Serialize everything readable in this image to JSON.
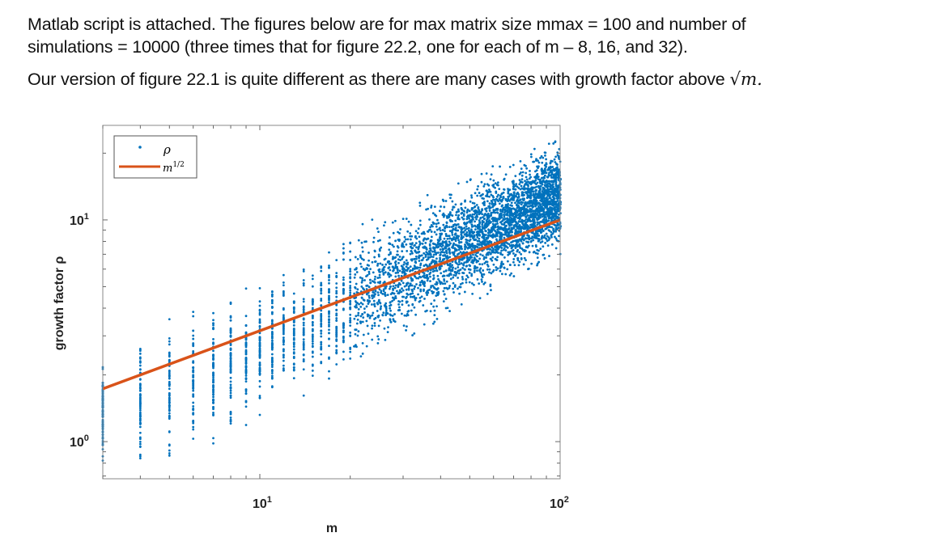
{
  "text": {
    "line1": "Matlab script is attached. The figures below are for max matrix size mmax = 100 and number of",
    "line2": "simulations = 10000 (three times that for figure 22.2, one for each of m – 8, 16, and 32).",
    "line3": "Our version of figure 22.1 is quite different as there are many cases with growth factor above",
    "line3_math": "√m."
  },
  "colors": {
    "scatter": "#0072BD",
    "line": "#D95319",
    "axis": "#7a7a7a"
  },
  "chart_data": {
    "type": "scatter",
    "xscale": "log",
    "yscale": "log",
    "xlabel": "m",
    "ylabel": "growth factor ρ",
    "xlim": [
      3,
      100
    ],
    "ylim": [
      0.68,
      26.7
    ],
    "xticks": [
      {
        "value": 10,
        "label": "10",
        "exp": "1"
      },
      {
        "value": 100,
        "label": "10",
        "exp": "2"
      }
    ],
    "yticks": [
      {
        "value": 1,
        "label": "10",
        "exp": "0"
      },
      {
        "value": 10,
        "label": "10",
        "exp": "1"
      }
    ],
    "legend": {
      "position": "top-left",
      "entries": [
        "ρ",
        "m^1/2"
      ],
      "rho": "ρ",
      "sqrt_base": "m",
      "sqrt_exp": "1/2"
    },
    "series": [
      {
        "name": "ρ",
        "kind": "scatter",
        "m_range": [
          3,
          100
        ],
        "envelope_m": [
          3,
          4,
          5,
          6,
          8,
          10,
          16,
          25,
          40,
          63,
          100
        ],
        "envelope_low": [
          0.7,
          0.72,
          0.78,
          0.85,
          1.0,
          1.3,
          1.7,
          2.4,
          3.5,
          5.0,
          7.0
        ],
        "envelope_high": [
          2.5,
          3.3,
          3.8,
          4.3,
          4.8,
          5.2,
          7.5,
          10.6,
          14,
          18,
          24
        ]
      },
      {
        "name": "m^1/2",
        "kind": "line",
        "x": [
          3,
          100
        ],
        "y": [
          1.732,
          10
        ]
      }
    ]
  }
}
